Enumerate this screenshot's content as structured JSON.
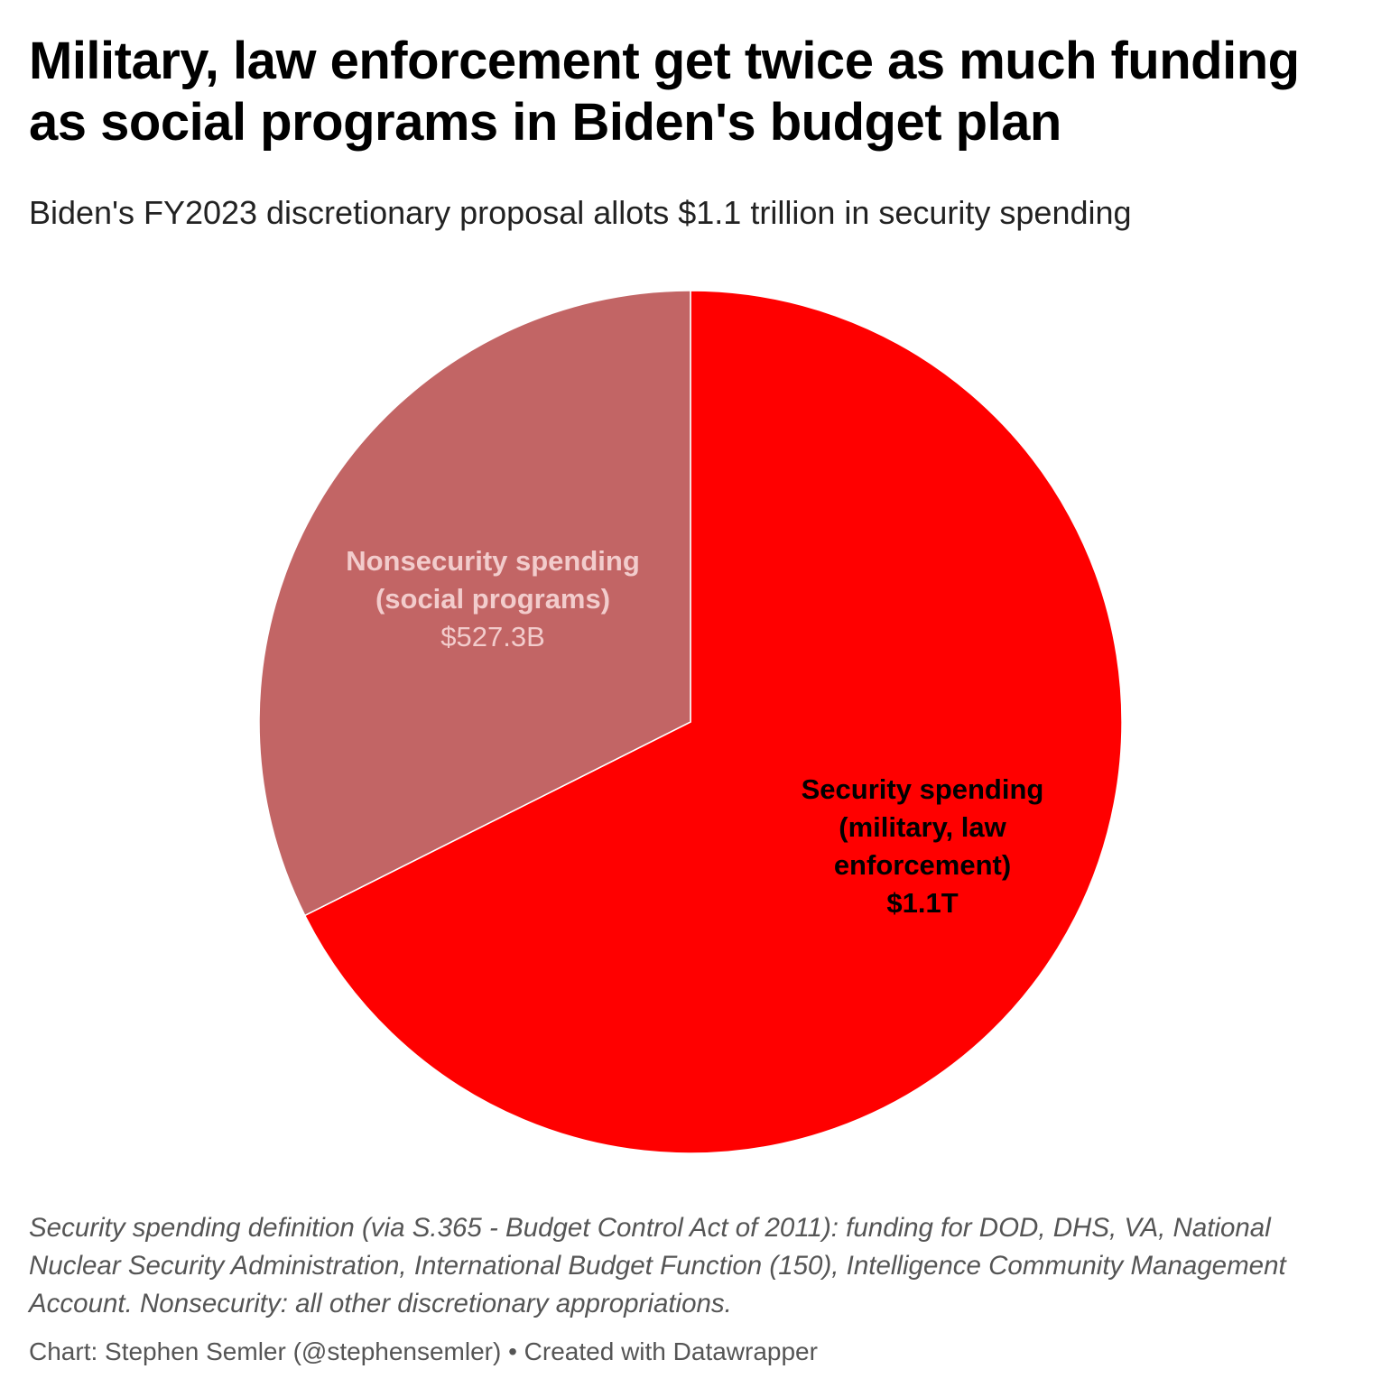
{
  "header": {
    "title": "Military, law enforcement get twice as much funding as social programs in Biden's budget plan",
    "subtitle": "Biden's FY2023 discretionary proposal allots $1.1 trillion in security spending"
  },
  "chart_data": {
    "type": "pie",
    "slices": [
      {
        "label_lines": [
          "Security spending",
          "(military, law",
          "enforcement)"
        ],
        "value_label": "$1.1T",
        "value": 1100,
        "color": "#ff0000",
        "text_color": "#000000"
      },
      {
        "label_lines": [
          "Nonsecurity spending",
          "(social programs)"
        ],
        "value_label": "$527.3B",
        "value": 527.3,
        "color": "#c26565",
        "text_color": "#f2cccc"
      }
    ]
  },
  "footer": {
    "notes": "Security spending definition (via S.365 - Budget Control Act of 2011): funding for DOD, DHS, VA, National Nuclear Security Administration, International Budget Function (150), Intelligence Community Management Account. Nonsecurity: all other discretionary appropriations.",
    "byline": "Chart: Stephen Semler (@stephensemler) • Created with Datawrapper"
  }
}
